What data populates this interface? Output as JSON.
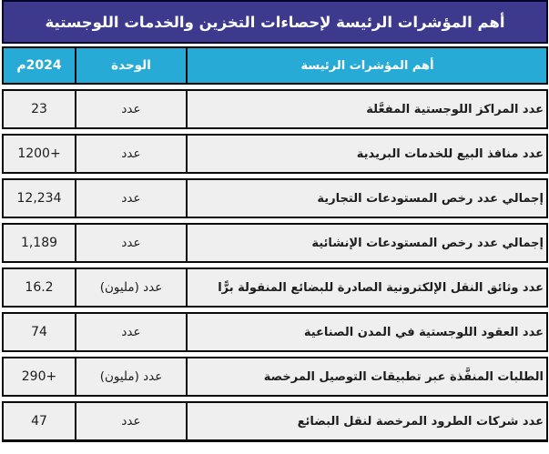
{
  "title": "أهم المؤشرات الرئيسة لإحصاءات التخزين والخدمات اللوجستية",
  "columns": {
    "indicator": "أهم المؤشرات الرئيسة",
    "unit": "الوحدة",
    "year": "2024م"
  },
  "rows": [
    {
      "indicator": "عدد المراكز اللوجستية المفعَّلة",
      "unit": "عدد",
      "value": "23"
    },
    {
      "indicator": "عدد منافذ البيع للخدمات البريدية",
      "unit": "عدد",
      "value": "1200+"
    },
    {
      "indicator": "إجمالي عدد رخص المستودعات التجارية",
      "unit": "عدد",
      "value": "12,234"
    },
    {
      "indicator": "إجمالي عدد رخص المستودعات الإنشائية",
      "unit": "عدد",
      "value": "1,189"
    },
    {
      "indicator": "عدد وثائق النقل الإلكترونية الصادرة للبضائع المنقولة برًّا",
      "unit": "عدد (مليون)",
      "value": "16.2"
    },
    {
      "indicator": "عدد العقود اللوجستية في المدن الصناعية",
      "unit": "عدد",
      "value": "74"
    },
    {
      "indicator": "الطلبات المنفَّذة عبر تطبيقات التوصيل المرخصة",
      "unit": "عدد (مليون)",
      "value": "290+"
    },
    {
      "indicator": "عدد شركات الطرود المرخصة لنقل البضائع",
      "unit": "عدد",
      "value": "47"
    }
  ],
  "colors": {
    "title_background": "#3d3a8d",
    "header_background": "#27aad6",
    "row_background": "#efefef",
    "border": "#0a0a0a",
    "header_text": "#ffffff",
    "body_text": "#1d1d1d"
  }
}
